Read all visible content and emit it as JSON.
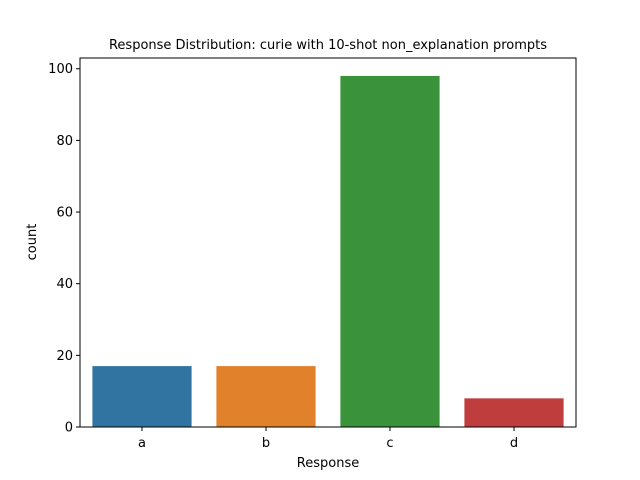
{
  "chart_data": {
    "type": "bar",
    "title": "Response Distribution: curie with 10-shot non_explanation prompts",
    "xlabel": "Response",
    "ylabel": "count",
    "categories": [
      "a",
      "b",
      "c",
      "d"
    ],
    "values": [
      17,
      17,
      98,
      8
    ],
    "colors": [
      "#3274a1",
      "#e1812c",
      "#3a923a",
      "#c03d3e"
    ],
    "ylim": [
      0,
      103
    ],
    "yticks": [
      0,
      20,
      40,
      60,
      80,
      100
    ],
    "grid": false,
    "legend": "none"
  }
}
